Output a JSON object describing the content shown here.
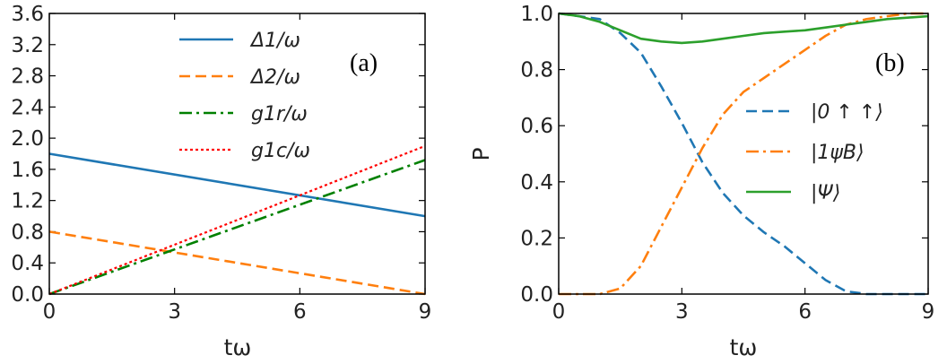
{
  "chart_data": [
    {
      "type": "line",
      "panel_label": "(a)",
      "xlabel": "tω",
      "ylabel": "",
      "xlim": [
        0,
        9
      ],
      "ylim": [
        0,
        3.6
      ],
      "xticks": [
        0,
        3,
        6,
        9
      ],
      "yticks": [
        0.0,
        0.4,
        0.8,
        1.2,
        1.6,
        2.0,
        2.4,
        2.8,
        3.2,
        3.6
      ],
      "xtick_labels": [
        "0",
        "3",
        "6",
        "9"
      ],
      "ytick_labels": [
        "0.0",
        "0.4",
        "0.8",
        "1.2",
        "1.6",
        "2.0",
        "2.4",
        "2.8",
        "3.2",
        "3.6"
      ],
      "legend_position": "top-center",
      "series": [
        {
          "name": "Δ1/ω",
          "color": "#1f77b4",
          "style": "solid",
          "x": [
            0,
            9
          ],
          "y": [
            1.8,
            1.0
          ]
        },
        {
          "name": "Δ2/ω",
          "color": "#ff7f0e",
          "style": "dashed",
          "x": [
            0,
            9
          ],
          "y": [
            0.8,
            0.0
          ]
        },
        {
          "name": "g1r/ω",
          "color": "#008000",
          "style": "dashdot",
          "x": [
            0,
            9
          ],
          "y": [
            0.0,
            1.72
          ]
        },
        {
          "name": "g1c/ω",
          "color": "#ff0000",
          "style": "dotted",
          "x": [
            0,
            9
          ],
          "y": [
            0.0,
            1.9
          ]
        }
      ]
    },
    {
      "type": "line",
      "panel_label": "(b)",
      "xlabel": "tω",
      "ylabel": "P",
      "xlim": [
        0,
        9
      ],
      "ylim": [
        0,
        1.0
      ],
      "xticks": [
        0,
        3,
        6,
        9
      ],
      "yticks": [
        0.0,
        0.2,
        0.4,
        0.6,
        0.8,
        1.0
      ],
      "xtick_labels": [
        "0",
        "3",
        "6",
        "9"
      ],
      "ytick_labels": [
        "0.0",
        "0.2",
        "0.4",
        "0.6",
        "0.8",
        "1.0"
      ],
      "legend_position": "center-right",
      "series": [
        {
          "name": "|0 ↑ ↑⟩",
          "color": "#1f77b4",
          "style": "dashed",
          "x": [
            0,
            0.5,
            1.0,
            1.5,
            2.0,
            2.5,
            3.0,
            3.5,
            4.0,
            4.5,
            5.0,
            5.5,
            6.0,
            6.5,
            7.0,
            7.5,
            8.0,
            8.5,
            9.0
          ],
          "y": [
            1.0,
            0.99,
            0.98,
            0.93,
            0.86,
            0.74,
            0.61,
            0.47,
            0.36,
            0.28,
            0.22,
            0.17,
            0.11,
            0.05,
            0.01,
            0.0,
            0.0,
            0.0,
            0.0
          ]
        },
        {
          "name": "|1ψB⟩",
          "color": "#ff7f0e",
          "style": "dashdot",
          "x": [
            0,
            0.5,
            1.0,
            1.5,
            2.0,
            2.5,
            3.0,
            3.5,
            4.0,
            4.5,
            5.0,
            5.5,
            6.0,
            6.5,
            7.0,
            7.5,
            8.0,
            8.5,
            9.0
          ],
          "y": [
            0.0,
            0.0,
            0.0,
            0.02,
            0.1,
            0.24,
            0.38,
            0.52,
            0.64,
            0.72,
            0.77,
            0.82,
            0.87,
            0.92,
            0.96,
            0.98,
            0.99,
            1.0,
            1.0
          ]
        },
        {
          "name": "|Ψ⟩",
          "color": "#2ca02c",
          "style": "solid",
          "x": [
            0,
            0.5,
            1.0,
            1.5,
            2.0,
            2.5,
            3.0,
            3.5,
            4.0,
            4.5,
            5.0,
            5.5,
            6.0,
            6.5,
            7.0,
            7.5,
            8.0,
            8.5,
            9.0
          ],
          "y": [
            1.0,
            0.99,
            0.97,
            0.94,
            0.91,
            0.9,
            0.895,
            0.9,
            0.91,
            0.92,
            0.93,
            0.935,
            0.94,
            0.95,
            0.96,
            0.97,
            0.98,
            0.985,
            0.99
          ]
        }
      ]
    }
  ]
}
